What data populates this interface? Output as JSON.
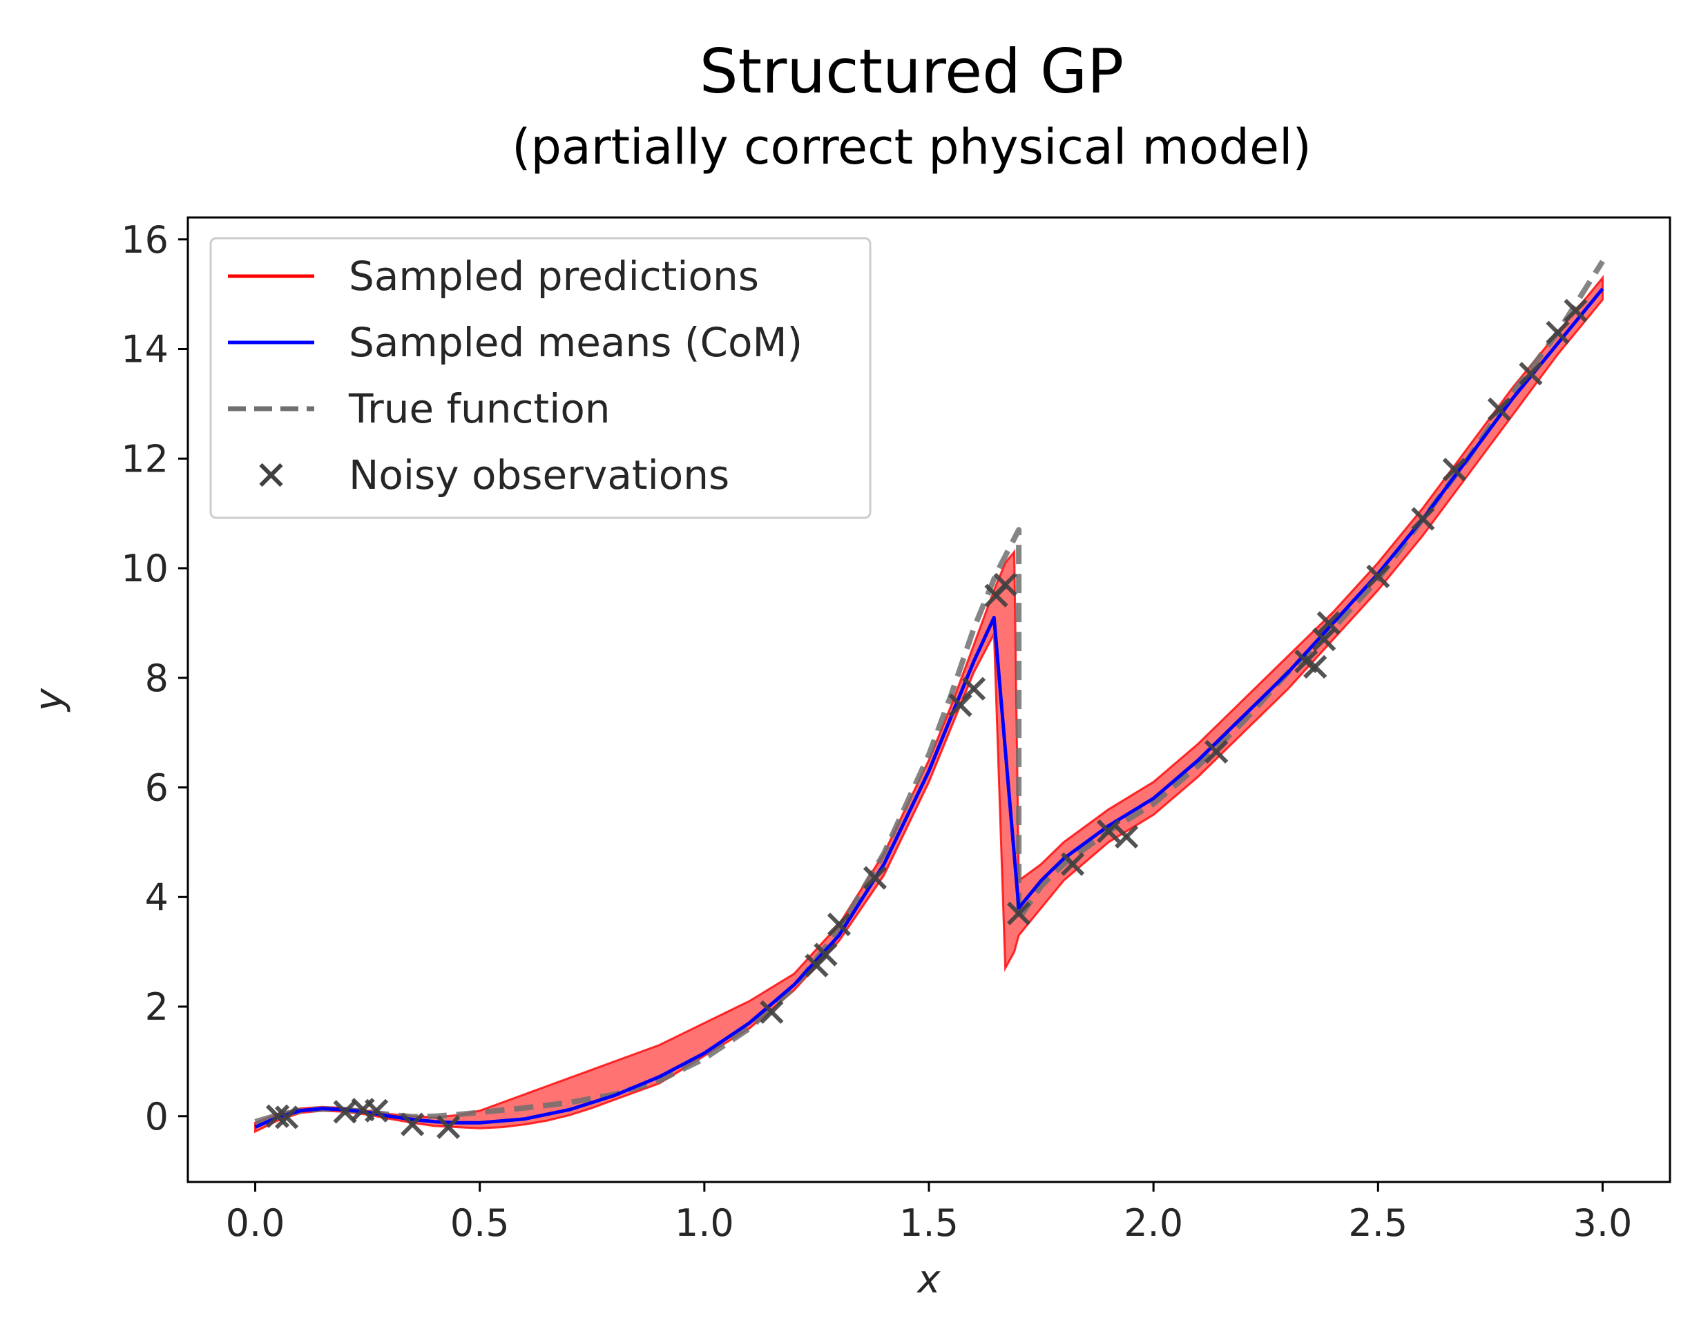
{
  "chart_data": {
    "type": "line",
    "title": "Structured GP",
    "subtitle": "(partially correct physical model)",
    "xlabel": "x",
    "ylabel": "y",
    "xlim": [
      -0.15,
      3.15
    ],
    "ylim": [
      -1.2,
      16.4
    ],
    "xticks": [
      0.0,
      0.5,
      1.0,
      1.5,
      2.0,
      2.5,
      3.0
    ],
    "xtick_labels": [
      "0.0",
      "0.5",
      "1.0",
      "1.5",
      "2.0",
      "2.5",
      "3.0"
    ],
    "yticks": [
      0,
      2,
      4,
      6,
      8,
      10,
      12,
      14,
      16
    ],
    "ytick_labels": [
      "0",
      "2",
      "4",
      "6",
      "8",
      "10",
      "12",
      "14",
      "16"
    ],
    "grid": false,
    "legend_position": "top-left",
    "legend": [
      {
        "label": "Sampled predictions",
        "style": "line",
        "color": "#ff0000"
      },
      {
        "label": "Sampled means (CoM)",
        "style": "line",
        "color": "#0000ff"
      },
      {
        "label": "True function",
        "style": "dashed",
        "color": "#707070"
      },
      {
        "label": "Noisy observations",
        "style": "marker-x",
        "color": "#404040"
      }
    ],
    "series": [
      {
        "name": "True function",
        "color": "#707070",
        "style": "dashed",
        "x": [
          0.0,
          0.05,
          0.1,
          0.15,
          0.2,
          0.25,
          0.3,
          0.35,
          0.4,
          0.45,
          0.5,
          0.6,
          0.7,
          0.8,
          0.9,
          1.0,
          1.1,
          1.2,
          1.3,
          1.4,
          1.5,
          1.55,
          1.6,
          1.65,
          1.7,
          1.7,
          1.75,
          1.8,
          1.9,
          2.0,
          2.1,
          2.2,
          2.3,
          2.4,
          2.5,
          2.6,
          2.7,
          2.8,
          2.9,
          3.0
        ],
        "y": [
          -0.1,
          0.02,
          0.1,
          0.13,
          0.12,
          0.08,
          0.03,
          -0.01,
          0.0,
          0.03,
          0.07,
          0.15,
          0.25,
          0.4,
          0.65,
          1.05,
          1.6,
          2.35,
          3.4,
          4.8,
          6.6,
          7.7,
          8.9,
          9.9,
          10.7,
          3.6,
          4.2,
          4.6,
          5.2,
          5.7,
          6.4,
          7.2,
          8.1,
          8.9,
          9.8,
          10.9,
          12.0,
          13.2,
          14.3,
          15.6
        ]
      },
      {
        "name": "Sampled means (CoM)",
        "color": "#0000ff",
        "style": "solid",
        "x": [
          0.0,
          0.05,
          0.1,
          0.15,
          0.2,
          0.25,
          0.3,
          0.35,
          0.4,
          0.45,
          0.5,
          0.6,
          0.7,
          0.8,
          0.9,
          1.0,
          1.1,
          1.2,
          1.3,
          1.4,
          1.5,
          1.55,
          1.6,
          1.645,
          1.7,
          1.75,
          1.8,
          1.9,
          2.0,
          2.1,
          2.2,
          2.3,
          2.4,
          2.5,
          2.6,
          2.7,
          2.8,
          2.9,
          3.0
        ],
        "y": [
          -0.2,
          -0.02,
          0.1,
          0.14,
          0.12,
          0.07,
          0.0,
          -0.06,
          -0.1,
          -0.12,
          -0.12,
          -0.05,
          0.12,
          0.38,
          0.72,
          1.15,
          1.7,
          2.4,
          3.3,
          4.6,
          6.3,
          7.3,
          8.3,
          9.1,
          3.8,
          4.3,
          4.7,
          5.3,
          5.8,
          6.5,
          7.3,
          8.1,
          9.0,
          9.9,
          10.9,
          12.0,
          13.1,
          14.1,
          15.1
        ]
      }
    ],
    "observations": {
      "name": "Noisy observations",
      "x": [
        0.05,
        0.07,
        0.2,
        0.24,
        0.27,
        0.35,
        0.43,
        1.15,
        1.25,
        1.27,
        1.3,
        1.38,
        1.57,
        1.6,
        1.65,
        1.67,
        1.7,
        1.82,
        1.9,
        1.94,
        2.14,
        2.34,
        2.36,
        2.38,
        2.39,
        2.5,
        2.6,
        2.67,
        2.77,
        2.84,
        2.9,
        2.94
      ],
      "y": [
        0.0,
        -0.02,
        0.08,
        0.12,
        0.1,
        -0.15,
        -0.2,
        1.9,
        2.75,
        2.95,
        3.5,
        4.35,
        7.5,
        7.8,
        9.5,
        9.7,
        3.7,
        4.6,
        5.2,
        5.1,
        6.65,
        8.3,
        8.2,
        8.7,
        9.0,
        9.85,
        10.9,
        11.8,
        12.9,
        13.55,
        14.3,
        14.7
      ]
    },
    "uncertainty_band": {
      "name": "Sampled predictions",
      "color": "#ff0000",
      "x": [
        0.0,
        0.05,
        0.1,
        0.15,
        0.2,
        0.25,
        0.3,
        0.35,
        0.4,
        0.45,
        0.5,
        0.55,
        0.6,
        0.65,
        0.7,
        0.75,
        0.8,
        0.85,
        0.9,
        0.95,
        1.0,
        1.05,
        1.1,
        1.2,
        1.3,
        1.4,
        1.5,
        1.55,
        1.6,
        1.645,
        1.67,
        1.69,
        1.7,
        1.75,
        1.8,
        1.9,
        2.0,
        2.1,
        2.2,
        2.3,
        2.4,
        2.5,
        2.6,
        2.7,
        2.8,
        2.9,
        3.0
      ],
      "upper": [
        -0.12,
        0.04,
        0.14,
        0.17,
        0.15,
        0.1,
        0.04,
        0.0,
        -0.02,
        0.02,
        0.1,
        0.25,
        0.4,
        0.55,
        0.7,
        0.85,
        1.0,
        1.15,
        1.3,
        1.5,
        1.7,
        1.9,
        2.1,
        2.6,
        3.5,
        4.8,
        6.5,
        7.5,
        8.6,
        9.6,
        10.1,
        10.3,
        4.3,
        4.6,
        5.0,
        5.6,
        6.1,
        6.8,
        7.6,
        8.4,
        9.2,
        10.1,
        11.1,
        12.2,
        13.3,
        14.3,
        15.3
      ],
      "lower": [
        -0.28,
        -0.08,
        0.06,
        0.1,
        0.08,
        0.03,
        -0.05,
        -0.12,
        -0.18,
        -0.2,
        -0.22,
        -0.2,
        -0.15,
        -0.08,
        0.02,
        0.15,
        0.3,
        0.45,
        0.6,
        0.85,
        1.1,
        1.35,
        1.6,
        2.3,
        3.2,
        4.4,
        6.1,
        7.1,
        8.1,
        8.8,
        2.7,
        3.0,
        3.3,
        3.8,
        4.3,
        5.0,
        5.5,
        6.2,
        7.0,
        7.8,
        8.7,
        9.6,
        10.6,
        11.7,
        12.8,
        13.9,
        14.9
      ]
    }
  }
}
